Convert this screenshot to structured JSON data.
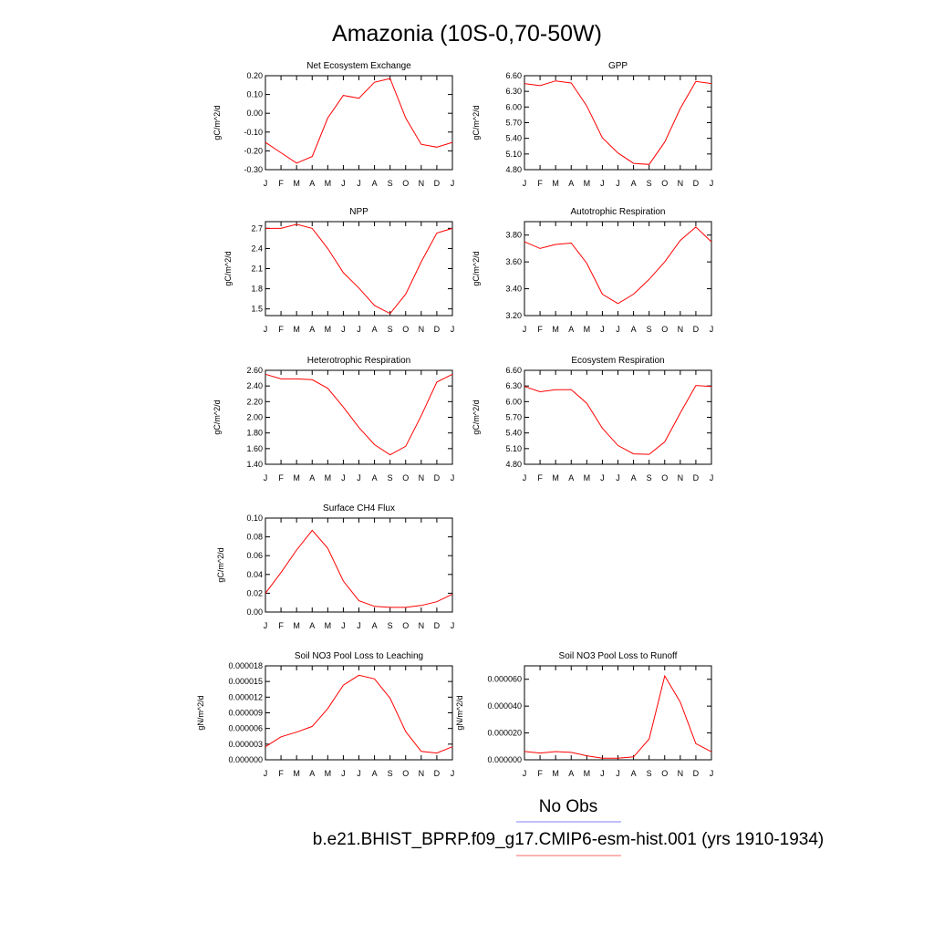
{
  "figure_title": "Amazonia (10S-0,70-50W)",
  "legend": {
    "items": [
      {
        "label": "No Obs",
        "color": "#8080ff"
      },
      {
        "label": "b.e21.BHIST_BPRP.f09_g17.CMIP6-esm-hist.001 (yrs 1910-1934)",
        "color": "#ff6666"
      }
    ]
  },
  "colors": {
    "series": "#ff0000"
  },
  "chart_data": [
    {
      "type": "line",
      "title": "Net Ecosystem Exchange",
      "ylabel": "gC/m^2/d",
      "xlabel": "",
      "categories": [
        "J",
        "F",
        "M",
        "A",
        "M",
        "J",
        "J",
        "A",
        "S",
        "O",
        "N",
        "D",
        "J"
      ],
      "ylim": [
        -0.3,
        0.2
      ],
      "yticks": [
        "0.20",
        "0.10",
        "0.00",
        "-0.10",
        "-0.20",
        "-0.30"
      ],
      "ytick_values": [
        0.2,
        0.1,
        0.0,
        -0.1,
        -0.2,
        -0.3
      ],
      "values": [
        -0.155,
        -0.21,
        -0.265,
        -0.23,
        -0.025,
        0.095,
        0.08,
        0.165,
        0.185,
        -0.025,
        -0.165,
        -0.18,
        -0.155
      ]
    },
    {
      "type": "line",
      "title": "GPP",
      "ylabel": "gC/m^2/d",
      "xlabel": "",
      "categories": [
        "J",
        "F",
        "M",
        "A",
        "M",
        "J",
        "J",
        "A",
        "S",
        "O",
        "N",
        "D",
        "J"
      ],
      "ylim": [
        4.8,
        6.6
      ],
      "yticks": [
        "6.60",
        "6.30",
        "6.00",
        "5.70",
        "5.40",
        "5.10",
        "4.80"
      ],
      "ytick_values": [
        6.6,
        6.3,
        6.0,
        5.7,
        5.4,
        5.1,
        4.8
      ],
      "values": [
        6.45,
        6.41,
        6.5,
        6.46,
        6.02,
        5.41,
        5.12,
        4.92,
        4.9,
        5.33,
        5.97,
        6.49,
        6.45
      ]
    },
    {
      "type": "line",
      "title": "NPP",
      "ylabel": "gC/m^2/d",
      "xlabel": "",
      "categories": [
        "J",
        "F",
        "M",
        "A",
        "M",
        "J",
        "J",
        "A",
        "S",
        "O",
        "N",
        "D",
        "J"
      ],
      "ylim": [
        1.4,
        2.8
      ],
      "yticks": [
        "2.7",
        "2.4",
        "2.1",
        "1.8",
        "1.5"
      ],
      "ytick_values": [
        2.7,
        2.4,
        2.1,
        1.8,
        1.5
      ],
      "values": [
        2.7,
        2.7,
        2.76,
        2.7,
        2.4,
        2.04,
        1.81,
        1.55,
        1.43,
        1.72,
        2.2,
        2.63,
        2.7
      ]
    },
    {
      "type": "line",
      "title": "Autotrophic Respiration",
      "ylabel": "gC/m^2/d",
      "xlabel": "",
      "categories": [
        "J",
        "F",
        "M",
        "A",
        "M",
        "J",
        "J",
        "A",
        "S",
        "O",
        "N",
        "D",
        "J"
      ],
      "ylim": [
        3.2,
        3.9
      ],
      "yticks": [
        "3.80",
        "3.60",
        "3.40",
        "3.20"
      ],
      "ytick_values": [
        3.8,
        3.6,
        3.4,
        3.2
      ],
      "values": [
        3.75,
        3.7,
        3.73,
        3.74,
        3.59,
        3.36,
        3.29,
        3.36,
        3.47,
        3.6,
        3.76,
        3.86,
        3.75
      ]
    },
    {
      "type": "line",
      "title": "Heterotrophic Respiration",
      "ylabel": "gC/m^2/d",
      "xlabel": "",
      "categories": [
        "J",
        "F",
        "M",
        "A",
        "M",
        "J",
        "J",
        "A",
        "S",
        "O",
        "N",
        "D",
        "J"
      ],
      "ylim": [
        1.4,
        2.6
      ],
      "yticks": [
        "2.60",
        "2.40",
        "2.20",
        "2.00",
        "1.80",
        "1.60",
        "1.40"
      ],
      "ytick_values": [
        2.6,
        2.4,
        2.2,
        2.0,
        1.8,
        1.6,
        1.4
      ],
      "values": [
        2.55,
        2.49,
        2.49,
        2.48,
        2.37,
        2.13,
        1.87,
        1.65,
        1.52,
        1.63,
        2.02,
        2.45,
        2.55
      ]
    },
    {
      "type": "line",
      "title": "Ecosystem Respiration",
      "ylabel": "gC/m^2/d",
      "xlabel": "",
      "categories": [
        "J",
        "F",
        "M",
        "A",
        "M",
        "J",
        "J",
        "A",
        "S",
        "O",
        "N",
        "D",
        "J"
      ],
      "ylim": [
        4.8,
        6.6
      ],
      "yticks": [
        "6.60",
        "6.30",
        "6.00",
        "5.70",
        "5.40",
        "5.10",
        "4.80"
      ],
      "ytick_values": [
        6.6,
        6.3,
        6.0,
        5.7,
        5.4,
        5.1,
        4.8
      ],
      "values": [
        6.29,
        6.19,
        6.23,
        6.23,
        5.97,
        5.49,
        5.16,
        5.0,
        4.99,
        5.23,
        5.78,
        6.31,
        6.29
      ]
    },
    {
      "type": "line",
      "title": "Surface CH4 Flux",
      "ylabel": "gC/m^2/d",
      "xlabel": "",
      "categories": [
        "J",
        "F",
        "M",
        "A",
        "M",
        "J",
        "J",
        "A",
        "S",
        "O",
        "N",
        "D",
        "J"
      ],
      "ylim": [
        0.0,
        0.1
      ],
      "yticks": [
        "0.10",
        "0.08",
        "0.06",
        "0.04",
        "0.02",
        "0.00"
      ],
      "ytick_values": [
        0.1,
        0.08,
        0.06,
        0.04,
        0.02,
        0.0
      ],
      "values": [
        0.02,
        0.042,
        0.066,
        0.087,
        0.068,
        0.033,
        0.012,
        0.006,
        0.005,
        0.005,
        0.007,
        0.011,
        0.019
      ]
    },
    {
      "type": "line",
      "title": "Soil NO3 Pool Loss to Leaching",
      "ylabel": "gN/m^2/d",
      "xlabel": "",
      "categories": [
        "J",
        "F",
        "M",
        "A",
        "M",
        "J",
        "J",
        "A",
        "S",
        "O",
        "N",
        "D",
        "J"
      ],
      "ylim": [
        0,
        1.8e-05
      ],
      "yticks": [
        "0.000018",
        "0.000015",
        "0.000012",
        "0.000009",
        "0.000006",
        "0.000003",
        "0.000000"
      ],
      "ytick_values": [
        1.8e-05,
        1.5e-05,
        1.2e-05,
        9e-06,
        6e-06,
        3e-06,
        0
      ],
      "values": [
        2.5e-06,
        4.4e-06,
        5.3e-06,
        6.4e-06,
        9.8e-06,
        1.43e-05,
        1.62e-05,
        1.55e-05,
        1.18e-05,
        5.4e-06,
        1.6e-06,
        1.3e-06,
        2.5e-06
      ]
    },
    {
      "type": "line",
      "title": "Soil NO3 Pool Loss to Runoff",
      "ylabel": "gN/m^2/d",
      "xlabel": "",
      "categories": [
        "J",
        "F",
        "M",
        "A",
        "M",
        "J",
        "J",
        "A",
        "S",
        "O",
        "N",
        "D",
        "J"
      ],
      "ylim": [
        0,
        7e-05
      ],
      "yticks": [
        "0.000060",
        "0.000040",
        "0.000020",
        "0.000000"
      ],
      "ytick_values": [
        6e-05,
        4e-05,
        2e-05,
        0
      ],
      "values": [
        6.2e-06,
        5e-06,
        6.1e-06,
        5.5e-06,
        3e-06,
        1.2e-06,
        1.2e-06,
        2.2e-06,
        1.55e-05,
        6.25e-05,
        4.3e-05,
        1.2e-05,
        6e-06
      ]
    }
  ]
}
